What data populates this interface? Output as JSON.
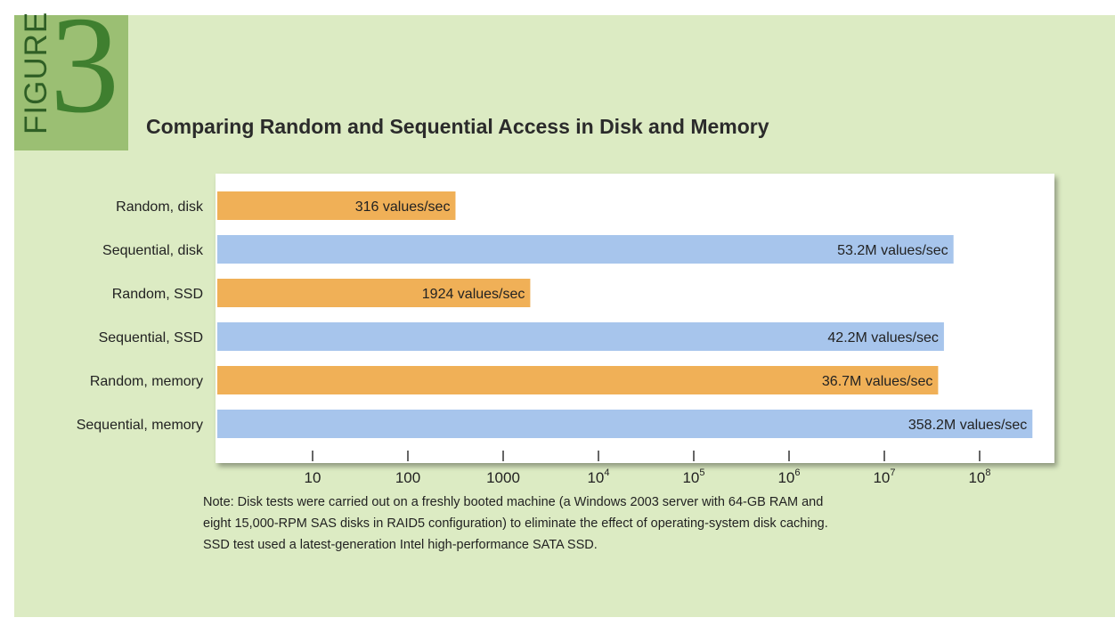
{
  "badge": {
    "word": "FIGURE",
    "number": "3"
  },
  "colors": {
    "background": "#dcebc3",
    "badge": "#9bbf73",
    "random_bar": "#f0b057",
    "sequential_bar": "#a7c5ec"
  },
  "note": {
    "lines": [
      "Note: Disk tests were carried out on a freshly booted machine (a Windows 2003 server with 64-GB RAM and",
      "eight 15,000-RPM SAS disks in RAID5 configuration) to eliminate the effect of operating-system disk caching.",
      "SSD test used a latest-generation Intel high-performance SATA SSD."
    ]
  },
  "chart_data": {
    "type": "bar",
    "orientation": "horizontal",
    "title": "Comparing Random and Sequential Access in Disk and Memory",
    "x_scale": "log",
    "x_range": [
      1,
      1000000000
    ],
    "categories": [
      "Random, disk",
      "Sequential, disk",
      "Random, SSD",
      "Sequential, SSD",
      "Random, memory",
      "Sequential, memory"
    ],
    "values": [
      316,
      53200000,
      1924,
      42200000,
      36700000,
      358200000
    ],
    "data_labels": [
      "316 values/sec",
      "53.2M values/sec",
      "1924 values/sec",
      "42.2M values/sec",
      "36.7M values/sec",
      "358.2M values/sec"
    ],
    "bar_colors": [
      "#f0b057",
      "#a7c5ec",
      "#f0b057",
      "#a7c5ec",
      "#f0b057",
      "#a7c5ec"
    ],
    "x_ticks": [
      {
        "value": 10,
        "base": "10",
        "exp": ""
      },
      {
        "value": 100,
        "base": "100",
        "exp": ""
      },
      {
        "value": 1000,
        "base": "1000",
        "exp": ""
      },
      {
        "value": 10000,
        "base": "10",
        "exp": "4"
      },
      {
        "value": 100000,
        "base": "10",
        "exp": "5"
      },
      {
        "value": 1000000,
        "base": "10",
        "exp": "6"
      },
      {
        "value": 10000000,
        "base": "10",
        "exp": "7"
      },
      {
        "value": 100000000,
        "base": "10",
        "exp": "8"
      }
    ],
    "grid": false,
    "legend": "none"
  }
}
